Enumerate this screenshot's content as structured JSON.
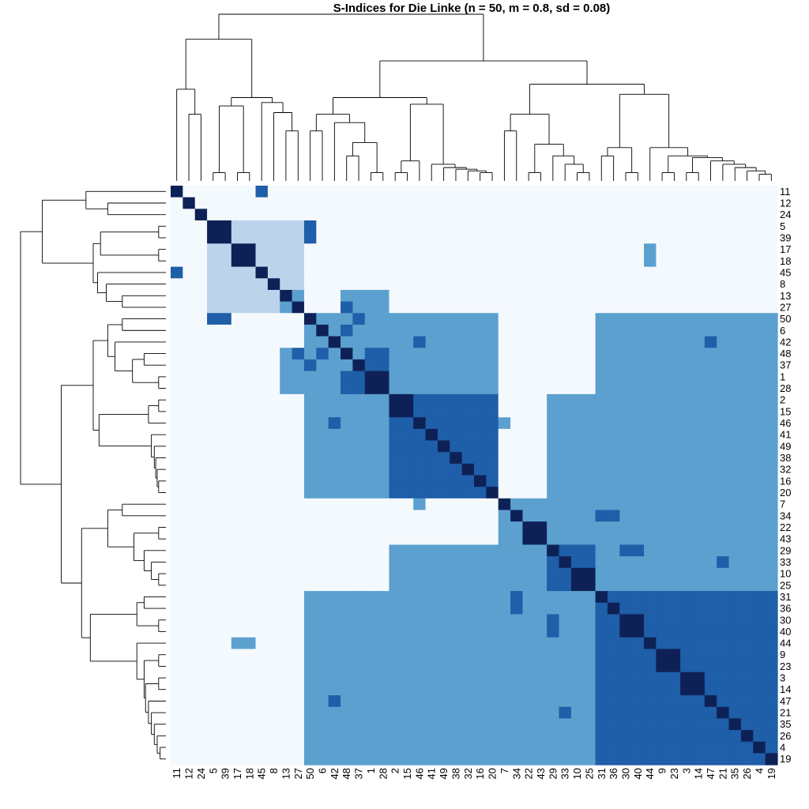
{
  "chart_data": {
    "type": "heatmap",
    "title": "S-Indices for Die Linke (n = 50, m = 0.8, sd = 0.08)",
    "order": [
      11,
      12,
      24,
      5,
      39,
      17,
      18,
      45,
      8,
      13,
      27,
      50,
      6,
      42,
      48,
      37,
      1,
      28,
      2,
      15,
      46,
      41,
      49,
      38,
      32,
      16,
      20,
      7,
      34,
      22,
      43,
      29,
      33,
      10,
      25,
      31,
      36,
      30,
      40,
      44,
      9,
      23,
      3,
      14,
      47,
      21,
      35,
      26,
      4,
      19
    ],
    "groups": [
      [
        11
      ],
      [
        12
      ],
      [
        24
      ],
      [
        5,
        39
      ],
      [
        17,
        18
      ],
      [
        45
      ],
      [
        8
      ],
      [
        13
      ],
      [
        27
      ],
      [
        50
      ],
      [
        6
      ],
      [
        42
      ],
      [
        48
      ],
      [
        37
      ],
      [
        1,
        28
      ],
      [
        2,
        15
      ],
      [
        46
      ],
      [
        41
      ],
      [
        49
      ],
      [
        38
      ],
      [
        32
      ],
      [
        16
      ],
      [
        20
      ],
      [
        7
      ],
      [
        34
      ],
      [
        22,
        43
      ],
      [
        29
      ],
      [
        33
      ],
      [
        10,
        25
      ],
      [
        31
      ],
      [
        36
      ],
      [
        30,
        40
      ],
      [
        44
      ],
      [
        9,
        23
      ],
      [
        3,
        14
      ],
      [
        47
      ],
      [
        21
      ],
      [
        35
      ],
      [
        26
      ],
      [
        4
      ],
      [
        19
      ]
    ],
    "blocks": [
      {
        "rows": [
          11,
          12,
          24
        ],
        "cols": [
          11,
          12,
          24
        ],
        "level": 0
      },
      {
        "rows": [
          5,
          39,
          17,
          18,
          45,
          8,
          13,
          27
        ],
        "cols": [
          5,
          39,
          17,
          18,
          45,
          8,
          13,
          27
        ],
        "level": 1
      },
      {
        "rows": [
          50,
          6,
          42,
          48,
          37,
          1,
          28
        ],
        "cols": [
          50,
          6,
          42,
          48,
          37,
          1,
          28
        ],
        "level": 2
      },
      {
        "rows": [
          13,
          27
        ],
        "cols": [
          48,
          37,
          1,
          28
        ],
        "level": 2
      },
      {
        "rows": [
          48,
          37,
          1,
          28
        ],
        "cols": [
          13,
          27
        ],
        "level": 2
      },
      {
        "rows": [
          2,
          15,
          46,
          41,
          49,
          38,
          32,
          16,
          20
        ],
        "cols": [
          2,
          15,
          46,
          41,
          49,
          38,
          32,
          16,
          20
        ],
        "level": 3
      },
      {
        "rows": [
          50,
          6,
          42,
          48,
          37,
          1,
          28
        ],
        "cols": [
          2,
          15,
          46,
          41,
          49,
          38,
          32,
          16,
          20
        ],
        "level": 2
      },
      {
        "rows": [
          2,
          15,
          46,
          41,
          49,
          38,
          32,
          16,
          20
        ],
        "cols": [
          50,
          6,
          42,
          48,
          37,
          1,
          28
        ],
        "level": 2
      },
      {
        "rows": [
          7,
          34,
          22,
          43,
          29,
          33,
          10,
          25,
          31,
          36,
          30,
          40,
          44,
          9,
          23,
          3,
          14,
          47,
          21,
          35,
          26,
          4,
          19
        ],
        "cols": [
          7,
          34,
          22,
          43,
          29,
          33,
          10,
          25,
          31,
          36,
          30,
          40,
          44,
          9,
          23,
          3,
          14,
          47,
          21,
          35,
          26,
          4,
          19
        ],
        "level": 2
      },
      {
        "rows": [
          29,
          33,
          10,
          25
        ],
        "cols": [
          29,
          33,
          10,
          25
        ],
        "level": 3
      },
      {
        "rows": [
          31,
          36,
          30,
          40,
          44,
          9,
          23,
          3,
          14,
          47,
          21,
          35,
          26,
          4,
          19
        ],
        "cols": [
          31,
          36,
          30,
          40,
          44,
          9,
          23,
          3,
          14,
          47,
          21,
          35,
          26,
          4,
          19
        ],
        "level": 3
      },
      {
        "rows": [
          50,
          6,
          42,
          48,
          37,
          1,
          28
        ],
        "cols": [
          31,
          36,
          30,
          40,
          44,
          9,
          23,
          3,
          14,
          47,
          21,
          35,
          26,
          4,
          19
        ],
        "level": 2
      },
      {
        "rows": [
          31,
          36,
          30,
          40,
          44,
          9,
          23,
          3,
          14,
          47,
          21,
          35,
          26,
          4,
          19
        ],
        "cols": [
          50,
          6,
          42,
          48,
          37,
          1,
          28
        ],
        "level": 2
      },
      {
        "rows": [
          2,
          15,
          46,
          41,
          49,
          38,
          32,
          16,
          20
        ],
        "cols": [
          29,
          33,
          10,
          25,
          31,
          36,
          30,
          40,
          44,
          9,
          23,
          3,
          14,
          47,
          21,
          35,
          26,
          4,
          19
        ],
        "level": 2
      },
      {
        "rows": [
          29,
          33,
          10,
          25,
          31,
          36,
          30,
          40,
          44,
          9,
          23,
          3,
          14,
          47,
          21,
          35,
          26,
          4,
          19
        ],
        "cols": [
          2,
          15,
          46,
          41,
          49,
          38,
          32,
          16,
          20
        ],
        "level": 2
      }
    ],
    "cells": [
      [
        11,
        45,
        3
      ],
      [
        45,
        11,
        3
      ],
      [
        5,
        50,
        3
      ],
      [
        39,
        50,
        3
      ],
      [
        50,
        5,
        3
      ],
      [
        50,
        39,
        3
      ],
      [
        17,
        44,
        2
      ],
      [
        18,
        44,
        2
      ],
      [
        44,
        17,
        2
      ],
      [
        44,
        18,
        2
      ],
      [
        13,
        27,
        2
      ],
      [
        27,
        13,
        2
      ],
      [
        27,
        48,
        3
      ],
      [
        48,
        27,
        3
      ],
      [
        50,
        37,
        3
      ],
      [
        37,
        50,
        3
      ],
      [
        6,
        48,
        3
      ],
      [
        48,
        6,
        3
      ],
      [
        48,
        1,
        3
      ],
      [
        48,
        28,
        3
      ],
      [
        1,
        48,
        3
      ],
      [
        28,
        48,
        3
      ],
      [
        37,
        1,
        3
      ],
      [
        37,
        28,
        3
      ],
      [
        1,
        37,
        3
      ],
      [
        28,
        37,
        3
      ],
      [
        42,
        46,
        3
      ],
      [
        46,
        42,
        3
      ],
      [
        42,
        47,
        3
      ],
      [
        47,
        42,
        3
      ],
      [
        46,
        7,
        2
      ],
      [
        7,
        46,
        2
      ],
      [
        34,
        31,
        3
      ],
      [
        34,
        36,
        3
      ],
      [
        31,
        34,
        3
      ],
      [
        36,
        34,
        3
      ],
      [
        29,
        30,
        3
      ],
      [
        29,
        40,
        3
      ],
      [
        30,
        29,
        3
      ],
      [
        40,
        29,
        3
      ],
      [
        33,
        21,
        3
      ],
      [
        21,
        33,
        3
      ],
      [
        29,
        10,
        3
      ],
      [
        29,
        25,
        3
      ],
      [
        33,
        10,
        3
      ],
      [
        33,
        25,
        3
      ],
      [
        10,
        29,
        3
      ],
      [
        25,
        29,
        3
      ],
      [
        10,
        33,
        3
      ],
      [
        25,
        33,
        3
      ]
    ],
    "levels": [
      {
        "color": "#f4f9fe"
      },
      {
        "color": "#bcd3eb"
      },
      {
        "color": "#5ba0cf"
      },
      {
        "color": "#1f5ea8"
      },
      {
        "color": "#0e2157"
      }
    ],
    "grid": false,
    "legend": "none",
    "dendrogram": "top-and-left"
  }
}
